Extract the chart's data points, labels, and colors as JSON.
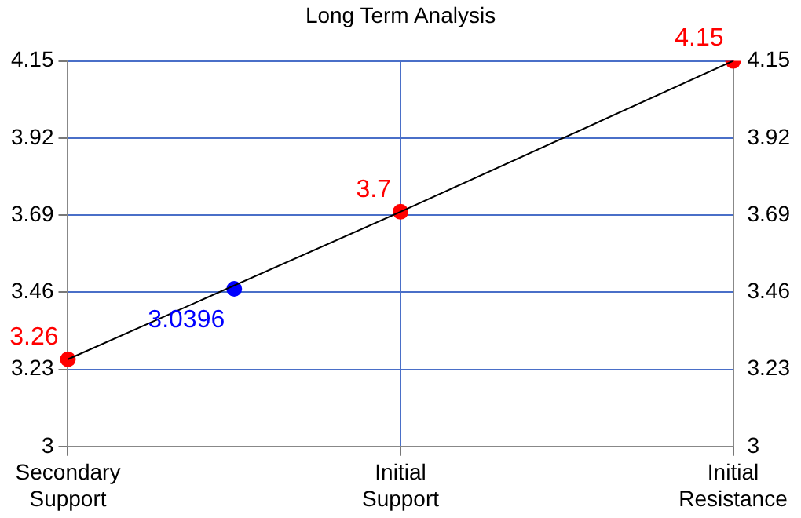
{
  "chart_data": {
    "type": "line",
    "title": "Long Term Analysis",
    "categories": [
      "Secondary Support",
      null,
      "Initial Support",
      null,
      "Initial Resistance"
    ],
    "ylim": [
      3,
      4.15
    ],
    "yticks": [
      3,
      3.23,
      3.46,
      3.69,
      3.92,
      4.15
    ],
    "y2lim": [
      3,
      4.15
    ],
    "y2ticks": [
      3,
      3.23,
      3.46,
      3.69,
      3.92,
      4.15
    ],
    "grid": true,
    "annotations": [
      "3.0396"
    ],
    "series": [
      {
        "color": "#000000",
        "values": [
          3.26,
          null,
          3.7,
          null,
          4.15
        ],
        "marker": "none"
      },
      {
        "type": "scatter",
        "color": "#ff0000",
        "values": [
          3.26,
          null,
          3.7,
          null,
          4.15
        ],
        "marker": "circle",
        "value_labels": [
          "3.26",
          null,
          "3.7",
          null,
          "4.15"
        ]
      },
      {
        "type": "scatter",
        "color": "#0000ff",
        "values": [
          null,
          3.47,
          null,
          null,
          null
        ],
        "marker": "circle"
      }
    ]
  }
}
